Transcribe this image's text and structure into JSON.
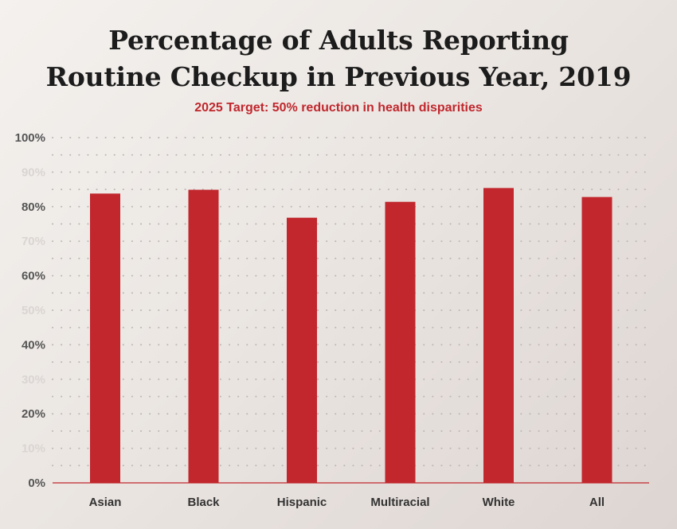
{
  "chart_data": {
    "type": "bar",
    "title_lines": [
      "Percentage of Adults Reporting",
      "Routine Checkup in Previous Year, 2019"
    ],
    "subtitle": "2025 Target: 50% reduction in health disparities",
    "categories": [
      "Asian",
      "Black",
      "Hispanic",
      "Multiracial",
      "White",
      "All"
    ],
    "values": [
      83.8,
      84.9,
      76.8,
      81.4,
      85.4,
      82.8
    ],
    "ylim": [
      0,
      100
    ],
    "yticks": [
      {
        "value": 0,
        "label": "0%"
      },
      {
        "value": 10,
        "label": "10%"
      },
      {
        "value": 20,
        "label": "20%"
      },
      {
        "value": 30,
        "label": "30%"
      },
      {
        "value": 40,
        "label": "40%"
      },
      {
        "value": 50,
        "label": "50%"
      },
      {
        "value": 60,
        "label": "60%"
      },
      {
        "value": 70,
        "label": "70%"
      },
      {
        "value": 80,
        "label": "80%"
      },
      {
        "value": 90,
        "label": "90%"
      },
      {
        "value": 100,
        "label": "100%"
      }
    ],
    "grid": "dotted",
    "colors": {
      "bar": "#c1272d",
      "subtitle": "#c0272d",
      "baseline": "#c1272d",
      "grid": "#bdb6b2"
    }
  }
}
